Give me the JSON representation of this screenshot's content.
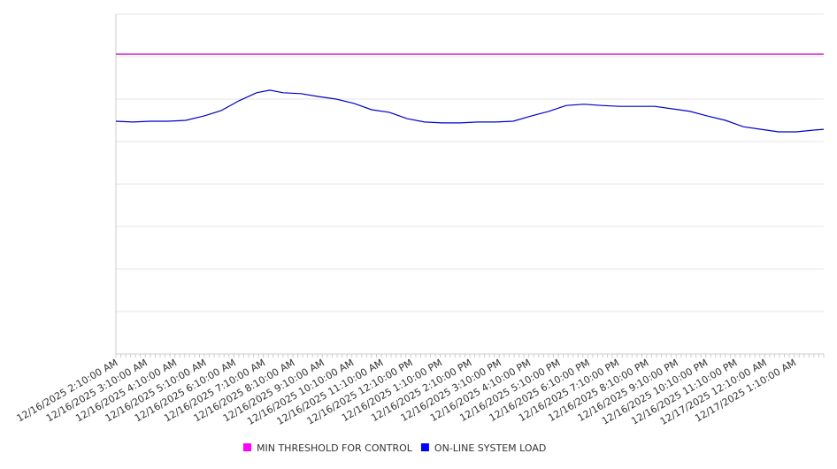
{
  "chart_data": {
    "type": "line",
    "title": "",
    "xlabel": "",
    "ylabel": "",
    "x_unit": "hours since 12/16/2025 2:10:00 AM",
    "xlim": [
      0,
      24
    ],
    "ylim": [
      0,
      8
    ],
    "grid": true,
    "legend_position": "bottom-center",
    "tick_labels": [
      "12/16/2025 2:10:00 AM",
      "12/16/2025 3:10:00 AM",
      "12/16/2025 4:10:00 AM",
      "12/16/2025 5:10:00 AM",
      "12/16/2025 6:10:00 AM",
      "12/16/2025 7:10:00 AM",
      "12/16/2025 8:10:00 AM",
      "12/16/2025 9:10:00 AM",
      "12/16/2025 10:10:00 AM",
      "12/16/2025 11:10:00 AM",
      "12/16/2025 12:10:00 PM",
      "12/16/2025 1:10:00 PM",
      "12/16/2025 2:10:00 PM",
      "12/16/2025 3:10:00 PM",
      "12/16/2025 4:10:00 PM",
      "12/16/2025 5:10:00 PM",
      "12/16/2025 6:10:00 PM",
      "12/16/2025 7:10:00 PM",
      "12/16/2025 8:10:00 PM",
      "12/16/2025 9:10:00 PM",
      "12/16/2025 10:10:00 PM",
      "12/16/2025 11:10:00 PM",
      "12/17/2025 12:10:00 AM",
      "12/17/2025 1:10:00 AM"
    ],
    "series": [
      {
        "name": "MIN THRESHOLD FOR CONTROL",
        "color": "#cc00cc",
        "legend_color": "#ff00ff",
        "x": [
          0,
          24
        ],
        "values": [
          7.06,
          7.06
        ]
      },
      {
        "name": "ON-LINE SYSTEM LOAD",
        "color": "#0000cc",
        "legend_color": "#0000ff",
        "x": [
          0,
          0.57,
          1.17,
          1.77,
          2.37,
          2.97,
          3.57,
          4.17,
          4.77,
          5.22,
          5.67,
          6.27,
          6.87,
          7.47,
          8.07,
          8.67,
          9.27,
          9.87,
          10.47,
          11.07,
          11.67,
          12.27,
          12.87,
          13.47,
          14.07,
          14.67,
          15.27,
          15.87,
          16.47,
          17.07,
          17.67,
          18.27,
          18.87,
          19.47,
          20.07,
          20.67,
          21.27,
          21.87,
          22.47,
          23.07,
          23.67,
          24.0
        ],
        "values": [
          5.48,
          5.46,
          5.48,
          5.48,
          5.5,
          5.6,
          5.73,
          5.96,
          6.15,
          6.21,
          6.15,
          6.13,
          6.06,
          6.0,
          5.9,
          5.75,
          5.69,
          5.54,
          5.46,
          5.44,
          5.44,
          5.46,
          5.46,
          5.48,
          5.6,
          5.71,
          5.85,
          5.88,
          5.85,
          5.83,
          5.83,
          5.83,
          5.77,
          5.71,
          5.6,
          5.5,
          5.35,
          5.29,
          5.23,
          5.23,
          5.27,
          5.29
        ]
      }
    ]
  }
}
